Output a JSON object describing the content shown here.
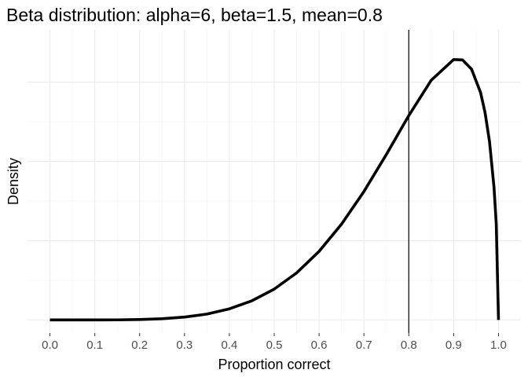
{
  "chart_data": {
    "type": "line",
    "title": "Beta distribution: alpha=6, beta=1.5, mean=0.8",
    "x_label": "Proportion correct",
    "y_label": "Density",
    "x": [
      0,
      0.05,
      0.1,
      0.15,
      0.2,
      0.25,
      0.3,
      0.35,
      0.4,
      0.45,
      0.5,
      0.55,
      0.6,
      0.65,
      0.7,
      0.75,
      0.8,
      0.85,
      0.9,
      0.92,
      0.94,
      0.96,
      0.97,
      0.98,
      0.99,
      0.995,
      1
    ],
    "series": [
      {
        "color": "#000000",
        "values": [
          0,
          0,
          0.0002,
          0.001,
          0.005,
          0.015,
          0.036,
          0.074,
          0.14,
          0.241,
          0.389,
          0.594,
          0.865,
          1.208,
          1.62,
          2.088,
          2.578,
          3.024,
          3.285,
          3.28,
          3.163,
          2.869,
          2.617,
          2.249,
          1.673,
          1.213,
          0
        ]
      }
    ],
    "vline": {
      "x": 0.8,
      "color": "#000000"
    },
    "xlim": [
      -0.05,
      1.05
    ],
    "xticks": [
      {
        "value": 0,
        "label": "0.0"
      },
      0.1,
      0.2,
      0.3,
      0.4,
      0.5,
      0.6,
      0.7,
      0.8,
      0.9,
      {
        "value": 1,
        "label": "1.0"
      }
    ],
    "ylim": [
      -0.165,
      3.66
    ],
    "yticks": [
      0,
      1,
      2,
      3
    ],
    "grid": true
  }
}
